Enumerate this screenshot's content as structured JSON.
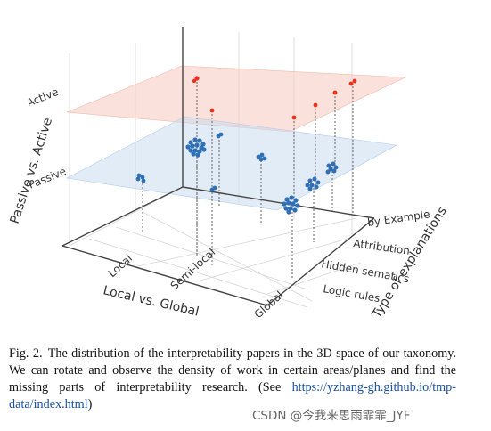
{
  "figure": {
    "z_axis": {
      "label": "Passive vs. Active",
      "ticks": [
        "Active",
        "Passive"
      ]
    },
    "x_axis": {
      "label": "Local vs. Global",
      "ticks": [
        "Local",
        "Semi-local",
        "Global"
      ]
    },
    "y_axis": {
      "label": "Type of explanations",
      "ticks": [
        "by Example",
        "Attribution",
        "Hidden sematics",
        "Logic rules"
      ]
    },
    "planes": {
      "active_color": "#f7c9bd",
      "passive_color": "#c6d9f0"
    },
    "point_colors": {
      "active": "#e8321c",
      "passive": "#2f6fb5"
    }
  },
  "caption": {
    "lead": "Fig. 2.",
    "text": "The distribution of the interpretability papers in the 3D space of our taxonomy. We can rotate and observe the density of work in certain areas/planes and find the missing parts of interpretability research. (See ",
    "link": "https://yzhang-gh.github.io/tmp-data/index.html",
    "tail": ")"
  },
  "watermark": "CSDN @今我来思雨霏霏_JYF"
}
